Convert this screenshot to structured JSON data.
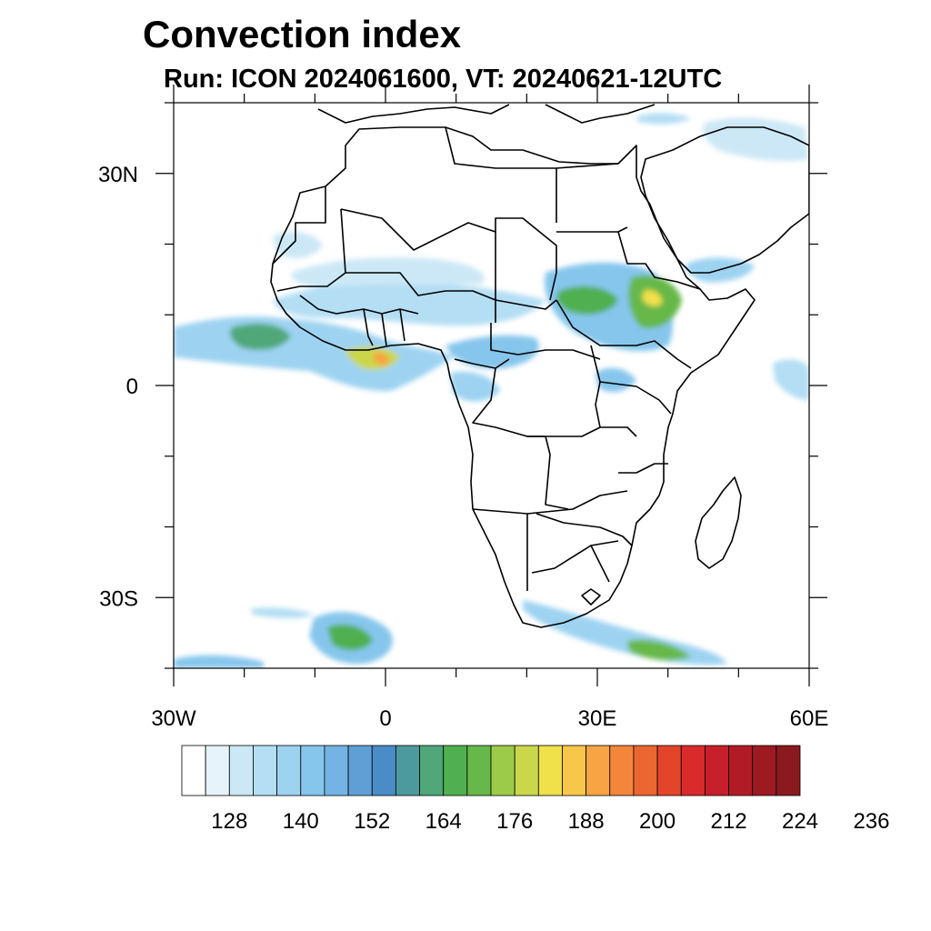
{
  "title": "Convection index",
  "subtitle": "Run: ICON 2024061600,  VT: 20240621-12UTC",
  "map": {
    "lon_range": [
      -30,
      60
    ],
    "lat_range": [
      -40,
      40
    ],
    "lon_ticks": [
      {
        "value": -30,
        "label": "30W"
      },
      {
        "value": 0,
        "label": "0"
      },
      {
        "value": 30,
        "label": "30E"
      },
      {
        "value": 60,
        "label": "60E"
      }
    ],
    "lat_ticks": [
      {
        "value": 30,
        "label": "30N"
      },
      {
        "value": 0,
        "label": "0"
      },
      {
        "value": -30,
        "label": "30S"
      }
    ]
  },
  "colorbar": {
    "colors": [
      "#ffffff",
      "#e6f3fb",
      "#cce8f6",
      "#b4def4",
      "#9dd3f1",
      "#86c6ec",
      "#74b3e3",
      "#5f9fd6",
      "#4a8cc7",
      "#4c9a9e",
      "#4fa77a",
      "#4fb04f",
      "#66b84a",
      "#9ccb4a",
      "#cbd74a",
      "#f0e04a",
      "#f8c64a",
      "#f7a444",
      "#f3863a",
      "#ec6630",
      "#e3452a",
      "#d92b2b",
      "#c71f2b",
      "#b21b26",
      "#9e1a22",
      "#8a1a1e"
    ],
    "labels": [
      "128",
      "140",
      "152",
      "164",
      "176",
      "188",
      "200",
      "212",
      "224",
      "236"
    ]
  }
}
